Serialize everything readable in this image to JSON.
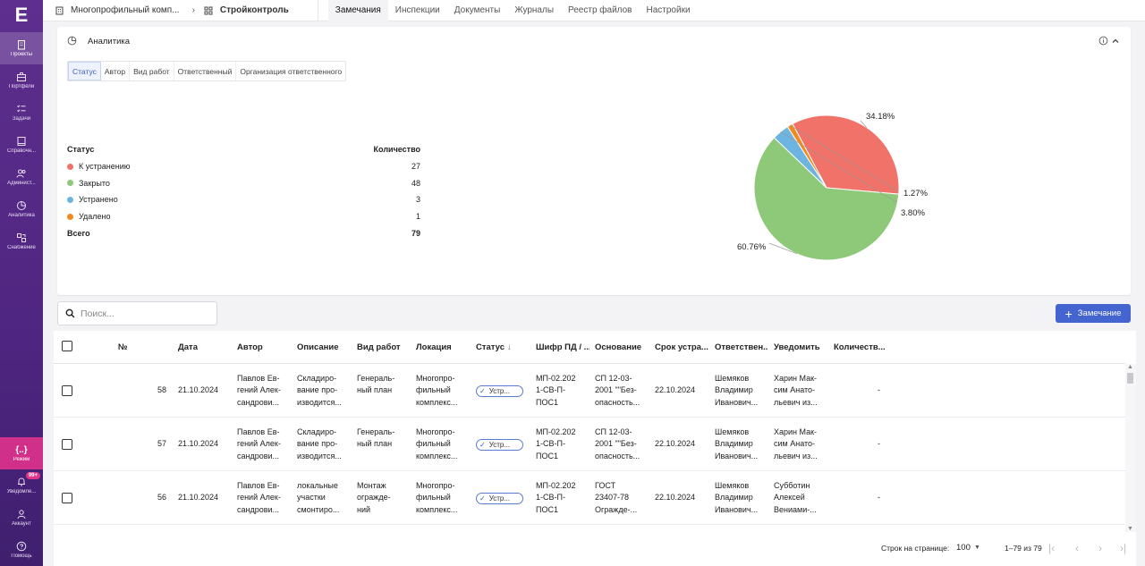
{
  "sidebar": {
    "logo": "E",
    "items": [
      {
        "label": "Проекты",
        "icon": "building-icon"
      },
      {
        "label": "Портфели",
        "icon": "briefcase-icon"
      },
      {
        "label": "Задачи",
        "icon": "tasks-icon"
      },
      {
        "label": "Справочн...",
        "icon": "book-icon"
      },
      {
        "label": "Админист...",
        "icon": "users-icon"
      },
      {
        "label": "Аналитика",
        "icon": "pie-icon"
      },
      {
        "label": "Снабжение",
        "icon": "supply-icon"
      }
    ],
    "bottom": {
      "mode": "Режим",
      "notifications": "Уведомле...",
      "badge": "99+",
      "account": "Аккаунт",
      "help": "Помощь"
    }
  },
  "topbar": {
    "breadcrumb_project": "Многопрофильный комп...",
    "breadcrumb_module": "Стройконтроль",
    "tabs": [
      "Замечания",
      "Инспекции",
      "Документы",
      "Журналы",
      "Реестр файлов",
      "Настройки"
    ]
  },
  "analytics": {
    "title": "Аналитика",
    "subtabs": [
      "Статус",
      "Автор",
      "Вид работ",
      "Ответственный",
      "Организация ответственного"
    ],
    "col_status": "Статус",
    "col_count": "Количество",
    "rows": [
      {
        "label": "К устранению",
        "value": "27",
        "color": "#f07268"
      },
      {
        "label": "Закрыто",
        "value": "48",
        "color": "#8ec97a"
      },
      {
        "label": "Устранено",
        "value": "3",
        "color": "#6db4e0"
      },
      {
        "label": "Удалено",
        "value": "1",
        "color": "#f08a1c"
      }
    ],
    "total_label": "Всего",
    "total_value": "79"
  },
  "chart_data": {
    "type": "pie",
    "categories": [
      "К устранению",
      "Закрыто",
      "Устранено",
      "Удалено"
    ],
    "values": [
      27,
      48,
      3,
      1
    ],
    "labels": [
      "34.18%",
      "60.76%",
      "3.80%",
      "1.27%"
    ],
    "colors": [
      "#f07268",
      "#8ec97a",
      "#6db4e0",
      "#f08a1c"
    ]
  },
  "toolbar": {
    "search_placeholder": "Поиск...",
    "add_label": "Замечание"
  },
  "table": {
    "headers": [
      "№",
      "Дата",
      "Автор",
      "Описание",
      "Вид работ",
      "Локация",
      "Статус",
      "Шифр ПД / ...",
      "Основание",
      "Срок устра...",
      "Ответствен...",
      "Уведомить",
      "Количеств..."
    ],
    "rows": [
      {
        "num": "58",
        "date": "21.10.2024",
        "author": [
          "Павлов Ев-",
          "гений Алек-",
          "сандрови..."
        ],
        "desc": [
          "Складиро-",
          "вание про-",
          "изводится..."
        ],
        "work": [
          "Генераль-",
          "ный план"
        ],
        "loc": [
          "Многопро-",
          "фильный",
          "комплекс..."
        ],
        "status": "Устр...",
        "code": [
          "МП-02.202",
          "1-СВ-П-",
          "ПОС1"
        ],
        "basis": [
          "СП 12-03-",
          "2001 \"\"Без-",
          "опасность..."
        ],
        "deadline": "22.10.2024",
        "resp": [
          "Шемяков",
          "Владимир",
          "Иванович..."
        ],
        "notify": [
          "Харин Мак-",
          "сим Анато-",
          "льевич из..."
        ],
        "qty": "-"
      },
      {
        "num": "57",
        "date": "21.10.2024",
        "author": [
          "Павлов Ев-",
          "гений Алек-",
          "сандрови..."
        ],
        "desc": [
          "Складиро-",
          "вание про-",
          "изводится..."
        ],
        "work": [
          "Генераль-",
          "ный план"
        ],
        "loc": [
          "Многопро-",
          "фильный",
          "комплекс..."
        ],
        "status": "Устр...",
        "code": [
          "МП-02.202",
          "1-СВ-П-",
          "ПОС1"
        ],
        "basis": [
          "СП 12-03-",
          "2001 \"\"Без-",
          "опасность..."
        ],
        "deadline": "22.10.2024",
        "resp": [
          "Шемяков",
          "Владимир",
          "Иванович..."
        ],
        "notify": [
          "Харин Мак-",
          "сим Анато-",
          "льевич из..."
        ],
        "qty": "-"
      },
      {
        "num": "56",
        "date": "21.10.2024",
        "author": [
          "Павлов Ев-",
          "гений Алек-",
          "сандрови..."
        ],
        "desc": [
          "локальные",
          "участки",
          "смонтиро..."
        ],
        "work": [
          "Монтаж",
          "огражде-",
          "ний"
        ],
        "loc": [
          "Многопро-",
          "фильный",
          "комплекс..."
        ],
        "status": "Устр...",
        "code": [
          "МП-02.202",
          "1-СВ-П-",
          "ПОС1"
        ],
        "basis": [
          "ГОСТ",
          "23407-78",
          "Огражде-..."
        ],
        "deadline": "22.10.2024",
        "resp": [
          "Шемяков",
          "Владимир",
          "Иванович..."
        ],
        "notify": [
          "Субботин",
          "Алексей",
          "Вениами-..."
        ],
        "qty": "-"
      }
    ]
  },
  "footer": {
    "rows_per_page_label": "Строк на странице:",
    "rows_per_page": "100",
    "range": "1–79 из 79"
  }
}
